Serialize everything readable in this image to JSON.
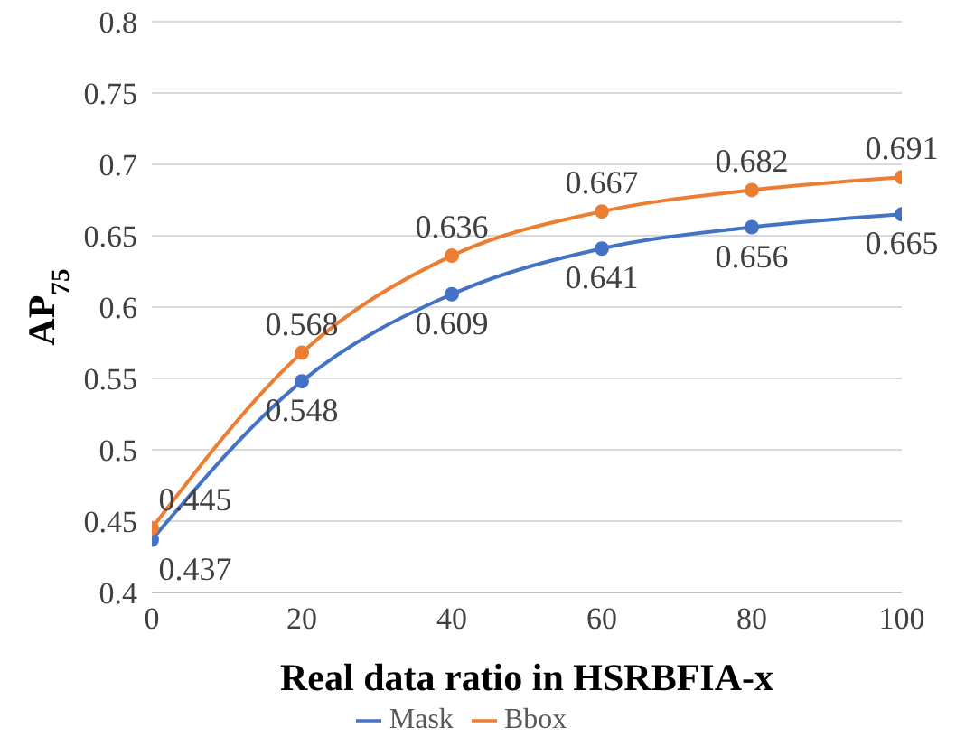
{
  "chart_data": {
    "type": "line",
    "xlabel": "Real data ratio in HSRBFIA-x",
    "ylabel": "AP$_{75}$",
    "x": [
      0,
      20,
      40,
      60,
      80,
      100
    ],
    "series": [
      {
        "name": "Mask",
        "color": "#4472c4",
        "values": [
          0.437,
          0.548,
          0.609,
          0.641,
          0.656,
          0.665
        ]
      },
      {
        "name": "Bbox",
        "color": "#ed7d31",
        "values": [
          0.445,
          0.568,
          0.636,
          0.667,
          0.682,
          0.691
        ]
      }
    ],
    "xlim": [
      0,
      100
    ],
    "xticks": [
      0,
      20,
      40,
      60,
      80,
      100
    ],
    "ylim": [
      0.4,
      0.8
    ],
    "yticks": [
      0.4,
      0.45,
      0.5,
      0.55,
      0.6,
      0.65,
      0.7,
      0.75,
      0.8
    ],
    "grid": "y",
    "legend": "bottom",
    "marker": "circle",
    "line_style": "solid",
    "data_labels": true
  }
}
